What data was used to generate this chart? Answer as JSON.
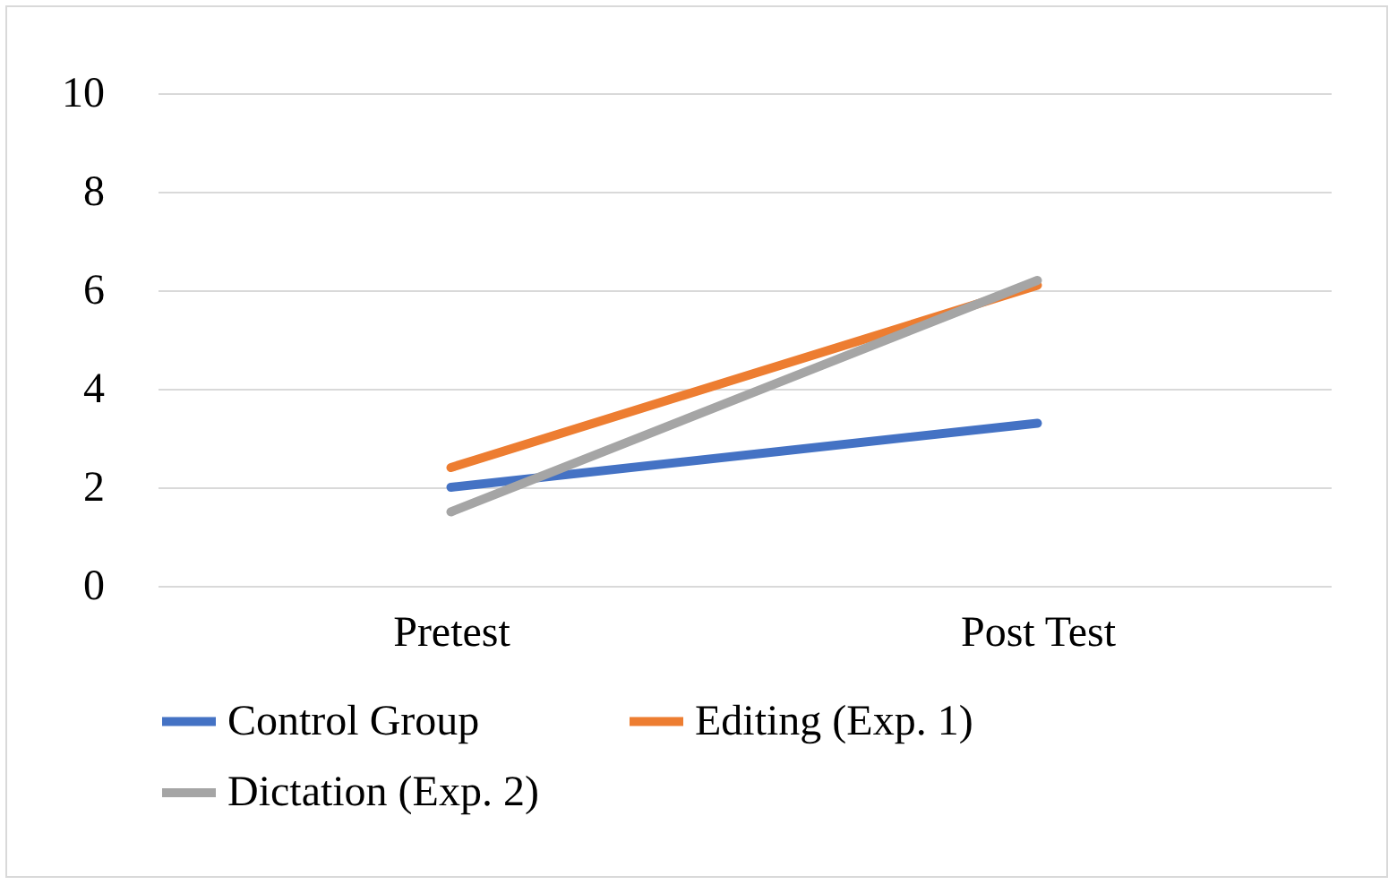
{
  "chart_data": {
    "type": "line",
    "categories": [
      "Pretest",
      "Post Test"
    ],
    "series": [
      {
        "name": "Control Group",
        "color": "#4472c4",
        "values": [
          2.0,
          3.3
        ]
      },
      {
        "name": "Editing (Exp. 1)",
        "color": "#ed7d31",
        "values": [
          2.4,
          6.1
        ]
      },
      {
        "name": "Dictation (Exp. 2)",
        "color": "#a5a5a5",
        "values": [
          1.5,
          6.2
        ]
      }
    ],
    "ylim": [
      0,
      10
    ],
    "yticks": [
      0,
      2,
      4,
      6,
      8,
      10
    ],
    "grid": "y",
    "legend": "bottom",
    "marker": "none",
    "line_style": "solid"
  }
}
